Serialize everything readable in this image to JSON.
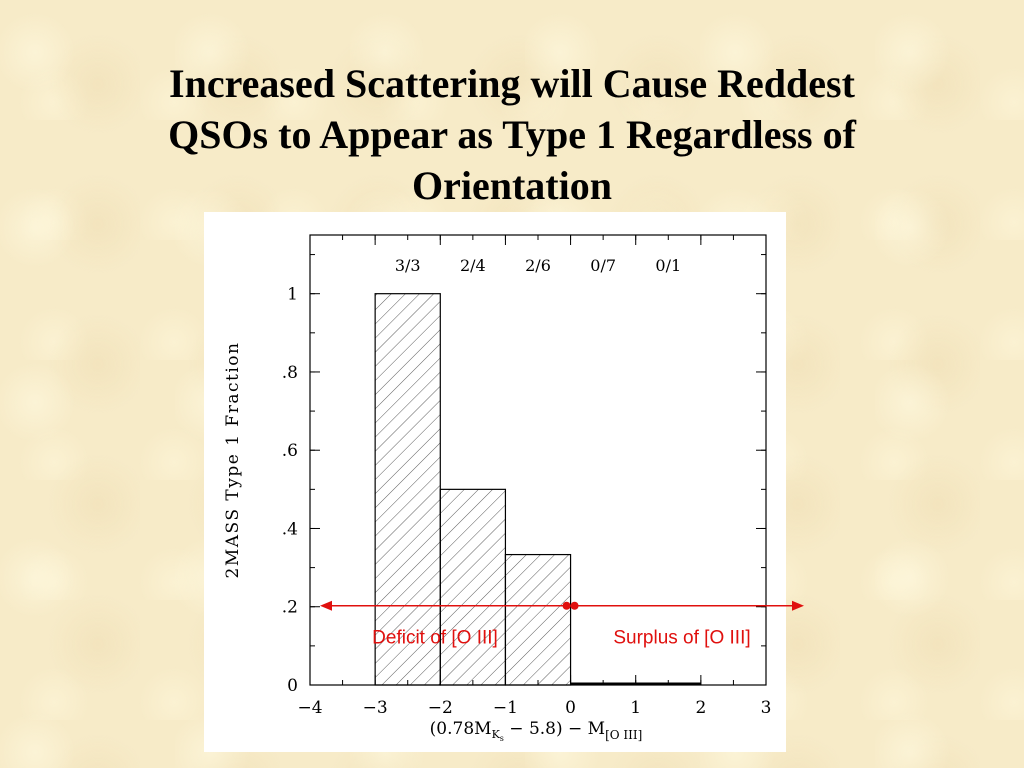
{
  "slide": {
    "title_lines": [
      "Increased Scattering will Cause Reddest",
      "QSOs to Appear as Type 1 Regardless of",
      "Orientation"
    ]
  },
  "chart_data": {
    "type": "bar",
    "bins": [
      {
        "x0": -3,
        "x1": -2,
        "value": 1.0,
        "fraction_label": "3/3"
      },
      {
        "x0": -2,
        "x1": -1,
        "value": 0.5,
        "fraction_label": "2/4"
      },
      {
        "x0": -1,
        "x1": 0,
        "value": 0.3333,
        "fraction_label": "2/6"
      },
      {
        "x0": 0,
        "x1": 1,
        "value": 0.0,
        "fraction_label": "0/7"
      },
      {
        "x0": 1,
        "x1": 2,
        "value": 0.0,
        "fraction_label": "0/1"
      }
    ],
    "xlim": [
      -4,
      3
    ],
    "ylim": [
      0,
      1.15
    ],
    "xticks": [
      -4,
      -3,
      -2,
      -1,
      0,
      1,
      2,
      3
    ],
    "xtick_labels": [
      "−4",
      "−3",
      "−2",
      "−1",
      "0",
      "1",
      "2",
      "3"
    ],
    "yticks": [
      0,
      0.2,
      0.4,
      0.6,
      0.8,
      1.0
    ],
    "ytick_labels": [
      "0",
      ".2",
      ".4",
      ".6",
      ".8",
      "1"
    ],
    "ylabel": "2MASS Type 1 Fraction",
    "xlabel_parts": {
      "open": "(0.78M",
      "sub1": "K",
      "subsub1": "s",
      "middle": " − 5.8) − M",
      "sub2": "[O III]"
    },
    "hatch": "diagonal",
    "grid": false,
    "annotations": {
      "arrow_y": 0.2,
      "split_x": 0,
      "left_label": "Deficit of [O III]",
      "right_label": "Surplus of [O III]",
      "color": "#e0100e"
    }
  }
}
